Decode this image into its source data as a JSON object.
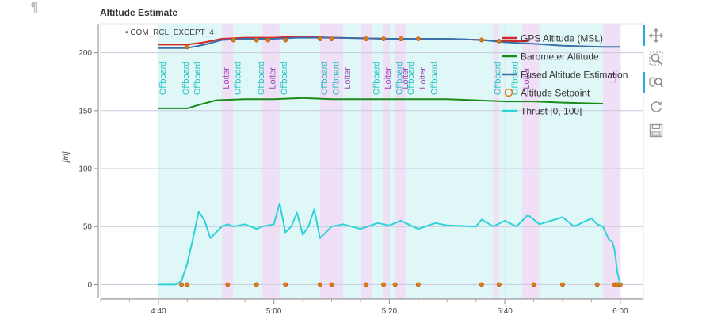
{
  "page": {
    "pilcrow": "¶"
  },
  "chart_data": {
    "type": "line",
    "title": "Altitude Estimate",
    "ylabel": "[m]",
    "xlabel": "",
    "x_unit": "mm:ss",
    "xlim": [
      "4:30",
      "6:04"
    ],
    "ylim": [
      -12,
      225
    ],
    "x_ticks": [
      "4:40",
      "5:00",
      "5:20",
      "5:40",
      "6:00"
    ],
    "y_ticks": [
      0,
      50,
      100,
      150,
      200
    ],
    "grid": true,
    "legend_position": "top-right",
    "param_marker": "COM_RCL_EXCEPT_4",
    "mode_bands": [
      {
        "mode": "Offboard",
        "start": "4:40",
        "end": "4:51",
        "color": "#e0f7f7"
      },
      {
        "mode": "Loiter",
        "start": "4:51",
        "end": "4:53",
        "color": "#efe0f5"
      },
      {
        "mode": "Offboard",
        "start": "4:53",
        "end": "4:58",
        "color": "#e0f7f7"
      },
      {
        "mode": "Loiter",
        "start": "4:58",
        "end": "5:01",
        "color": "#efe0f5"
      },
      {
        "mode": "Offboard",
        "start": "5:01",
        "end": "5:08",
        "color": "#e0f7f7"
      },
      {
        "mode": "Loiter",
        "start": "5:08",
        "end": "5:12",
        "color": "#efe0f5"
      },
      {
        "mode": "Offboard",
        "start": "5:12",
        "end": "5:15",
        "color": "#e0f7f7"
      },
      {
        "mode": "Loiter",
        "start": "5:15",
        "end": "5:17",
        "color": "#efe0f5"
      },
      {
        "mode": "Offboard",
        "start": "5:17",
        "end": "5:19",
        "color": "#e0f7f7"
      },
      {
        "mode": "Loiter",
        "start": "5:19",
        "end": "5:20",
        "color": "#efe0f5"
      },
      {
        "mode": "Offboard",
        "start": "5:20",
        "end": "5:21",
        "color": "#e0f7f7"
      },
      {
        "mode": "Loiter",
        "start": "5:21",
        "end": "5:23",
        "color": "#efe0f5"
      },
      {
        "mode": "Offboard",
        "start": "5:23",
        "end": "5:38",
        "color": "#e0f7f7"
      },
      {
        "mode": "Loiter",
        "start": "5:38",
        "end": "5:39",
        "color": "#efe0f5"
      },
      {
        "mode": "Offboard",
        "start": "5:39",
        "end": "5:43",
        "color": "#e0f7f7"
      },
      {
        "mode": "Loiter",
        "start": "5:43",
        "end": "5:46",
        "color": "#efe0f5"
      },
      {
        "mode": "Offboard",
        "start": "5:46",
        "end": "5:57",
        "color": "#e0f7f7"
      },
      {
        "mode": "Land",
        "start": "5:57",
        "end": "6:00",
        "color": "#efe0f5"
      }
    ],
    "mode_labels": [
      {
        "text": "Offboard",
        "at": "4:40",
        "color": "#20c0c0"
      },
      {
        "text": "Offboard",
        "at": "4:44",
        "color": "#20c0c0"
      },
      {
        "text": "Offboard",
        "at": "4:46",
        "color": "#20c0c0"
      },
      {
        "text": "Loiter",
        "at": "4:51",
        "color": "#9b4ab8"
      },
      {
        "text": "Offboard",
        "at": "4:53",
        "color": "#20c0c0"
      },
      {
        "text": "Offboard",
        "at": "4:57",
        "color": "#20c0c0"
      },
      {
        "text": "Loiter",
        "at": "4:59",
        "color": "#9b4ab8"
      },
      {
        "text": "Offboard",
        "at": "5:01",
        "color": "#20c0c0"
      },
      {
        "text": "Offboard",
        "at": "5:08",
        "color": "#20c0c0"
      },
      {
        "text": "Offboard",
        "at": "5:10",
        "color": "#20c0c0"
      },
      {
        "text": "Loiter",
        "at": "5:12",
        "color": "#9b4ab8"
      },
      {
        "text": "Offboard",
        "at": "5:17",
        "color": "#20c0c0"
      },
      {
        "text": "Loiter",
        "at": "5:19",
        "color": "#9b4ab8"
      },
      {
        "text": "Offboard",
        "at": "5:21",
        "color": "#20c0c0"
      },
      {
        "text": "Loiter",
        "at": "5:22",
        "color": "#9b4ab8"
      },
      {
        "text": "Offboard",
        "at": "5:23",
        "color": "#20c0c0"
      },
      {
        "text": "Loiter",
        "at": "5:25",
        "color": "#9b4ab8"
      },
      {
        "text": "Offboard",
        "at": "5:27",
        "color": "#20c0c0"
      },
      {
        "text": "Offboard",
        "at": "5:38",
        "color": "#20c0c0"
      },
      {
        "text": "Offboard",
        "at": "5:41",
        "color": "#20c0c0"
      },
      {
        "text": "Loiter",
        "at": "5:43",
        "color": "#9b4ab8"
      },
      {
        "text": "La",
        "at": "5:58",
        "color": "#9b4ab8"
      }
    ],
    "series": [
      {
        "name": "GPS Altitude (MSL)",
        "color": "#d62728",
        "kind": "line",
        "x": [
          "4:40",
          "4:45",
          "4:48",
          "4:51",
          "4:55",
          "5:00",
          "5:04",
          "5:10",
          "5:20",
          "5:30",
          "5:36",
          "5:40",
          "5:44"
        ],
        "values": [
          207,
          207,
          209,
          212,
          213,
          213,
          214,
          213,
          212,
          212,
          211,
          210,
          210
        ]
      },
      {
        "name": "Barometer Altitude",
        "color": "#1a8a1a",
        "kind": "line",
        "x": [
          "4:40",
          "4:45",
          "4:47",
          "4:50",
          "4:55",
          "5:00",
          "5:05",
          "5:10",
          "5:20",
          "5:30",
          "5:35",
          "5:40",
          "5:45",
          "5:50",
          "5:57"
        ],
        "values": [
          152,
          152,
          155,
          159,
          160,
          160,
          161,
          160,
          160,
          160,
          159,
          158,
          158,
          157,
          156
        ]
      },
      {
        "name": "Fused Altitude Estimation",
        "color": "#3b70a8",
        "kind": "line",
        "x": [
          "4:40",
          "4:45",
          "4:48",
          "4:51",
          "4:55",
          "5:00",
          "5:04",
          "5:10",
          "5:20",
          "5:30",
          "5:36",
          "5:40",
          "5:44",
          "5:50",
          "5:57",
          "6:00"
        ],
        "values": [
          204,
          204,
          207,
          211,
          212,
          212,
          213,
          213,
          212,
          212,
          211,
          209,
          208,
          206,
          205,
          205
        ]
      },
      {
        "name": "Altitude Setpoint",
        "color": "#e07b18",
        "kind": "points",
        "x": [
          "4:45",
          "4:53",
          "4:57",
          "4:59",
          "5:02",
          "5:08",
          "5:10",
          "5:16",
          "5:19",
          "5:22",
          "5:25",
          "5:36",
          "5:39"
        ],
        "values": [
          205,
          211,
          211,
          211,
          211,
          212,
          212,
          212,
          212,
          212,
          212,
          211,
          210
        ]
      },
      {
        "name": "Altitude Setpoint",
        "color": "#e07b18",
        "kind": "points",
        "x": [
          "4:44",
          "4:45",
          "4:52",
          "4:57",
          "5:02",
          "5:08",
          "5:10",
          "5:16",
          "5:19",
          "5:21",
          "5:25",
          "5:36",
          "5:39",
          "5:45",
          "5:50",
          "5:56",
          "5:59",
          "5:59.5",
          "6:00"
        ],
        "values": [
          0,
          0,
          0,
          0,
          0,
          0,
          0,
          0,
          0,
          0,
          0,
          0,
          0,
          0,
          0,
          0,
          0,
          0,
          0
        ]
      },
      {
        "name": "Thrust [0, 100]",
        "color": "#2ed3d8",
        "kind": "line",
        "x": [
          "4:40",
          "4:43",
          "4:44",
          "4:45",
          "4:46",
          "4:47",
          "4:48",
          "4:49",
          "4:50",
          "4:51",
          "4:52",
          "4:53",
          "4:55",
          "4:57",
          "4:58",
          "5:00",
          "5:01",
          "5:02",
          "5:03",
          "5:04",
          "5:05",
          "5:06",
          "5:07",
          "5:08",
          "5:10",
          "5:12",
          "5:15",
          "5:18",
          "5:20",
          "5:22",
          "5:25",
          "5:28",
          "5:30",
          "5:35",
          "5:36",
          "5:38",
          "5:40",
          "5:42",
          "5:44",
          "5:46",
          "5:48",
          "5:50",
          "5:52",
          "5:55",
          "5:56",
          "5:57",
          "5:58",
          "5:58.6",
          "5:59",
          "5:59.5",
          "6:00"
        ],
        "values": [
          0,
          0,
          3,
          18,
          40,
          63,
          55,
          40,
          45,
          50,
          52,
          50,
          52,
          48,
          50,
          52,
          70,
          45,
          50,
          62,
          43,
          50,
          65,
          40,
          50,
          52,
          48,
          53,
          51,
          55,
          48,
          53,
          51,
          50,
          56,
          50,
          55,
          50,
          60,
          52,
          55,
          58,
          50,
          57,
          52,
          50,
          39,
          37,
          30,
          10,
          0
        ]
      }
    ],
    "legend": [
      {
        "label": "GPS Altitude (MSL)",
        "color": "#d62728",
        "kind": "line"
      },
      {
        "label": "Barometer Altitude",
        "color": "#1a8a1a",
        "kind": "line"
      },
      {
        "label": "Fused Altitude Estimation",
        "color": "#3b70a8",
        "kind": "line"
      },
      {
        "label": "Altitude Setpoint",
        "color": "#e07b18",
        "kind": "circle"
      },
      {
        "label": "Thrust [0, 100]",
        "color": "#2ed3d8",
        "kind": "line"
      }
    ]
  },
  "toolbar": {
    "tools": [
      {
        "name": "pan-tool",
        "icon": "move-icon",
        "active": true
      },
      {
        "name": "box-zoom-tool",
        "icon": "zoom-box-icon",
        "active": false
      },
      {
        "name": "wheel-zoom-tool",
        "icon": "wheel-zoom-icon",
        "active": true
      },
      {
        "name": "reset-tool",
        "icon": "reset-icon",
        "active": false
      },
      {
        "name": "save-tool",
        "icon": "save-icon",
        "active": false
      }
    ]
  }
}
